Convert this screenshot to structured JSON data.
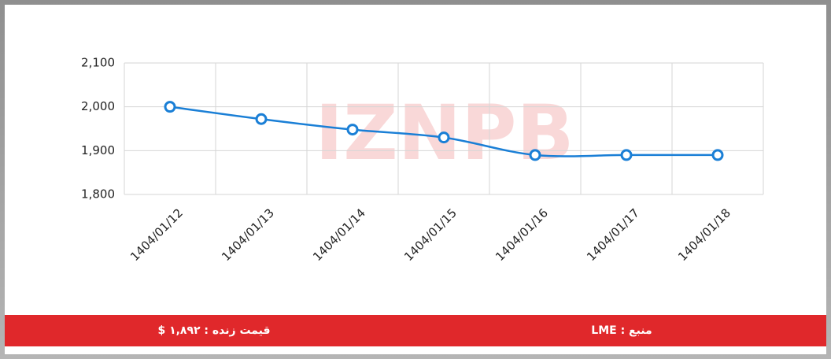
{
  "chart_data": {
    "type": "line",
    "categories": [
      "1404/01/12",
      "1404/01/13",
      "1404/01/14",
      "1404/01/15",
      "1404/01/16",
      "1404/01/17",
      "1404/01/18"
    ],
    "series": [
      {
        "color": "#1a7fd6",
        "values": [
          2000,
          1972,
          1948,
          1930,
          1890,
          1890,
          1890
        ]
      }
    ],
    "ylim": [
      1800,
      2100
    ],
    "yticks": [
      {
        "value": 1800,
        "label": "1,800"
      },
      {
        "value": 1900,
        "label": "1,900"
      },
      {
        "value": 2000,
        "label": "2,000"
      },
      {
        "value": 2100,
        "label": "2,100"
      }
    ],
    "grid": true,
    "watermark": "IZNPB"
  },
  "footer": {
    "price": "قیمت زنده : ۱,۸۹۲ $",
    "source": "منبع : LME"
  }
}
